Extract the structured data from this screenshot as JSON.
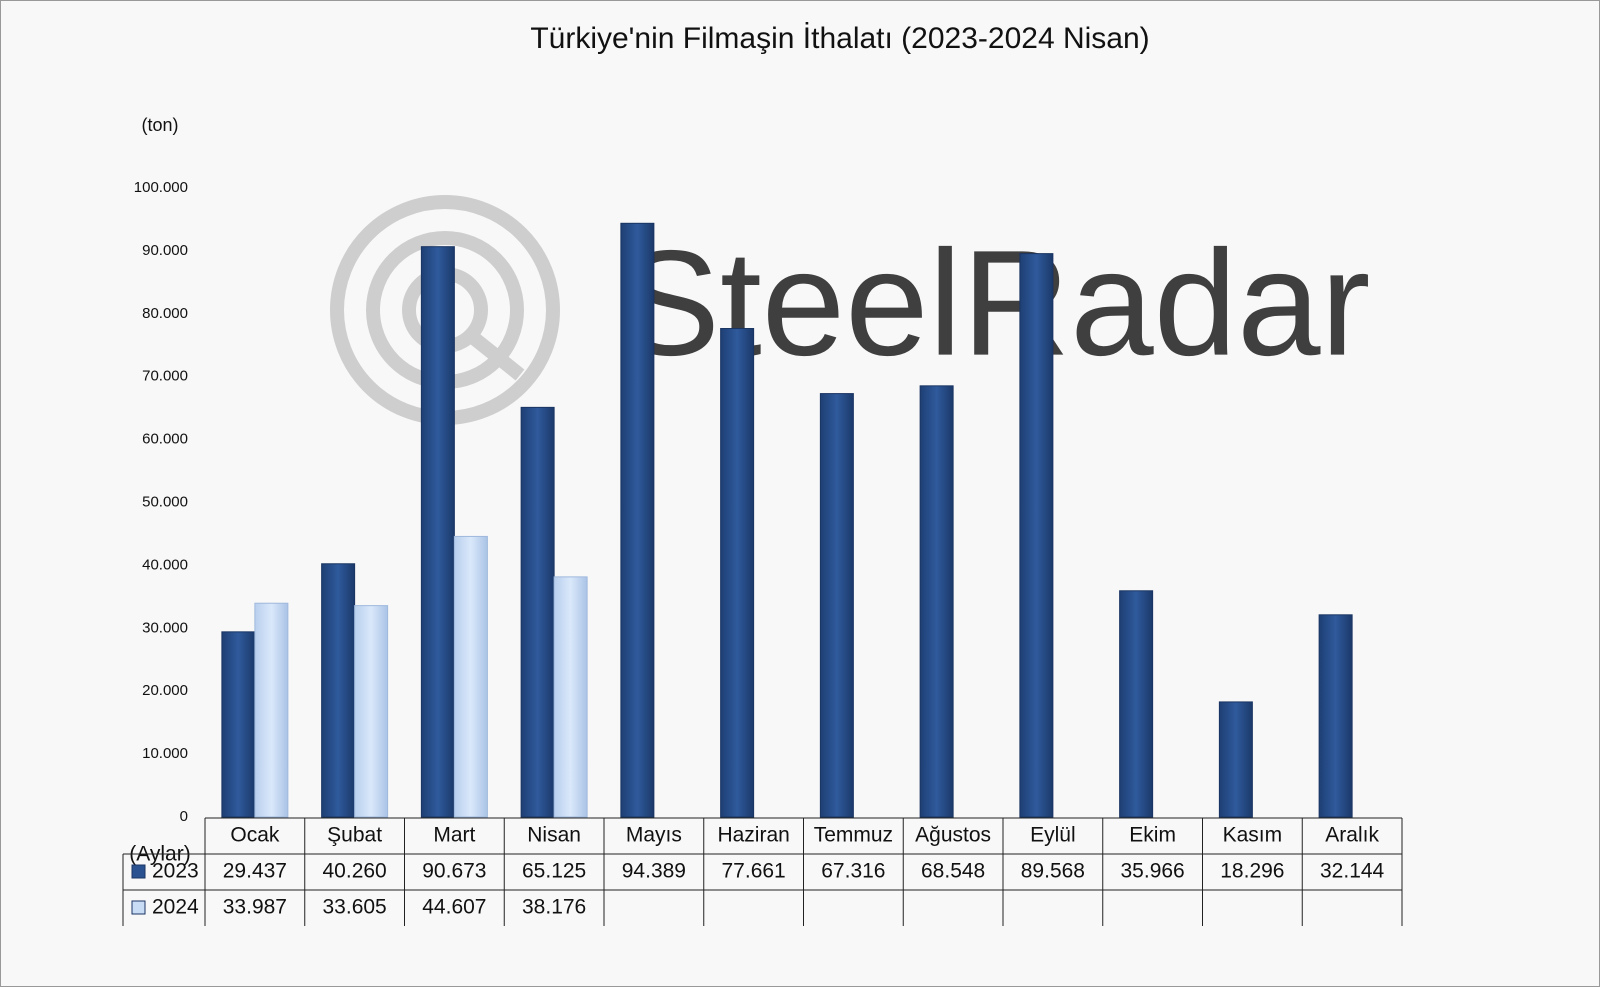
{
  "chart_data": {
    "type": "bar",
    "title": "Türkiye'nin Filmaşin İthalatı (2023-2024 Nisan)",
    "y_label": "(ton)",
    "x_label": "(Aylar)",
    "watermark": "SteelRadar",
    "categories": [
      "Ocak",
      "Şubat",
      "Mart",
      "Nisan",
      "Mayıs",
      "Haziran",
      "Temmuz",
      "Ağustos",
      "Eylül",
      "Ekim",
      "Kasım",
      "Aralık"
    ],
    "series": [
      {
        "name": "2023",
        "color": "#2a5290",
        "values": [
          29437,
          40260,
          90673,
          65125,
          94389,
          77661,
          67316,
          68548,
          89568,
          35966,
          18296,
          32144
        ],
        "value_labels": [
          "29.437",
          "40.260",
          "90.673",
          "65.125",
          "94.389",
          "77.661",
          "67.316",
          "68.548",
          "89.568",
          "35.966",
          "18.296",
          "32.144"
        ]
      },
      {
        "name": "2024",
        "color": "#c9dcf5",
        "values": [
          33987,
          33605,
          44607,
          38176,
          null,
          null,
          null,
          null,
          null,
          null,
          null,
          null
        ],
        "value_labels": [
          "33.987",
          "33.605",
          "44.607",
          "38.176",
          null,
          null,
          null,
          null,
          null,
          null,
          null,
          null
        ]
      }
    ],
    "ylim": [
      0,
      100000
    ],
    "yticks": [
      0,
      {
        "value": 10000,
        "label": "10.000"
      },
      {
        "value": 20000,
        "label": "20.000"
      },
      {
        "value": 30000,
        "label": "30.000"
      },
      {
        "value": 40000,
        "label": "40.000"
      },
      {
        "value": 50000,
        "label": "50.000"
      },
      {
        "value": 60000,
        "label": "60.000"
      },
      {
        "value": 70000,
        "label": "70.000"
      },
      {
        "value": 80000,
        "label": "80.000"
      },
      {
        "value": 90000,
        "label": "90.000"
      },
      {
        "value": 100000,
        "label": "100.000"
      }
    ],
    "grid": false
  }
}
